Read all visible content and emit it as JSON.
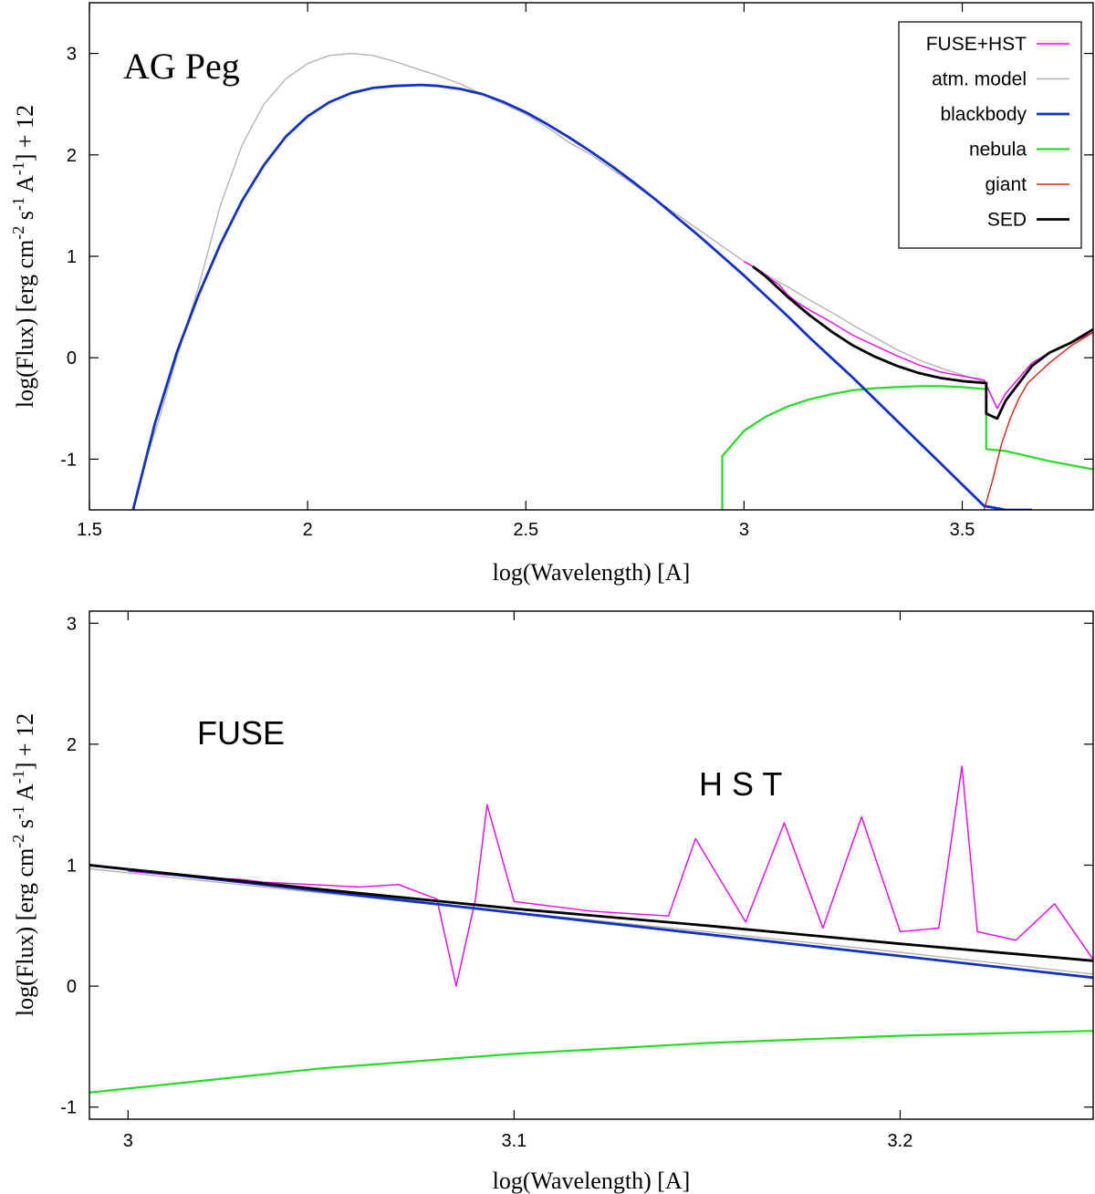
{
  "chart_data": [
    {
      "type": "line",
      "title": "AG Peg",
      "xlabel": "log(Wavelength) [A]",
      "ylabel": "log(Flux) [erg cm^-2 s^-1 A^-1] + 12",
      "xlim": [
        1.5,
        3.8
      ],
      "ylim": [
        -1.5,
        3.5
      ],
      "xticks": [
        1.5,
        2,
        2.5,
        3,
        3.5
      ],
      "xtick_labels": [
        "1.5",
        "2",
        "2.5",
        "3",
        "3.5"
      ],
      "yticks": [
        -1,
        0,
        1,
        2,
        3
      ],
      "ytick_labels": [
        "-1",
        "0",
        "1",
        "2",
        "3"
      ],
      "legend_position": "top-right",
      "colors": {
        "FUSE+HST": "#ee00ee",
        "atm. model": "#b4b4b4",
        "blackbody": "#1030c8",
        "nebula": "#22dd22",
        "giant": "#e02010",
        "SED": "#000000"
      },
      "series": [
        {
          "name": "atm. model",
          "x": [
            1.6,
            1.63,
            1.66,
            1.7,
            1.75,
            1.8,
            1.85,
            1.9,
            1.95,
            2.0,
            2.05,
            2.1,
            2.15,
            2.2,
            2.25,
            2.3,
            2.35,
            2.4,
            2.45,
            2.5,
            2.55,
            2.6,
            2.65,
            2.7,
            2.75,
            2.8,
            2.85,
            2.9,
            2.95,
            3.0,
            3.05,
            3.1,
            3.15,
            3.2,
            3.25,
            3.3,
            3.35,
            3.4,
            3.45,
            3.5,
            3.56
          ],
          "y": [
            -1.5,
            -1.0,
            -0.6,
            0.0,
            0.7,
            1.5,
            2.1,
            2.5,
            2.75,
            2.9,
            2.98,
            3.0,
            2.98,
            2.92,
            2.85,
            2.78,
            2.7,
            2.6,
            2.5,
            2.4,
            2.27,
            2.12,
            2.0,
            1.85,
            1.7,
            1.55,
            1.4,
            1.25,
            1.1,
            0.95,
            0.82,
            0.7,
            0.57,
            0.45,
            0.32,
            0.2,
            0.08,
            -0.02,
            -0.1,
            -0.17,
            -0.25
          ]
        },
        {
          "name": "blackbody",
          "x": [
            1.6,
            1.65,
            1.7,
            1.75,
            1.8,
            1.85,
            1.9,
            1.95,
            2.0,
            2.05,
            2.1,
            2.15,
            2.2,
            2.26,
            2.3,
            2.35,
            2.4,
            2.45,
            2.5,
            2.55,
            2.6,
            2.65,
            2.7,
            2.75,
            2.8,
            2.85,
            2.9,
            2.95,
            3.0,
            3.05,
            3.1,
            3.15,
            3.2,
            3.25,
            3.3,
            3.35,
            3.4,
            3.45,
            3.5,
            3.55,
            3.6,
            3.66
          ],
          "y": [
            -1.5,
            -0.65,
            0.05,
            0.62,
            1.12,
            1.55,
            1.9,
            2.18,
            2.38,
            2.52,
            2.61,
            2.66,
            2.68,
            2.69,
            2.68,
            2.65,
            2.6,
            2.52,
            2.42,
            2.3,
            2.17,
            2.03,
            1.88,
            1.72,
            1.55,
            1.37,
            1.19,
            1.0,
            0.81,
            0.61,
            0.41,
            0.2,
            0.0,
            -0.2,
            -0.41,
            -0.62,
            -0.83,
            -1.04,
            -1.25,
            -1.46,
            -1.5,
            -1.5
          ]
        },
        {
          "name": "nebula",
          "x": [
            2.95,
            2.95,
            3.0,
            3.05,
            3.1,
            3.15,
            3.2,
            3.25,
            3.3,
            3.35,
            3.4,
            3.45,
            3.5,
            3.555,
            3.555,
            3.6,
            3.65,
            3.7,
            3.75,
            3.8
          ],
          "y": [
            -1.5,
            -0.97,
            -0.72,
            -0.58,
            -0.48,
            -0.41,
            -0.36,
            -0.32,
            -0.3,
            -0.29,
            -0.28,
            -0.28,
            -0.29,
            -0.31,
            -0.9,
            -0.92,
            -0.97,
            -1.02,
            -1.06,
            -1.1
          ]
        },
        {
          "name": "giant",
          "x": [
            3.55,
            3.57,
            3.59,
            3.61,
            3.63,
            3.65,
            3.7,
            3.75,
            3.8
          ],
          "y": [
            -1.5,
            -1.2,
            -0.85,
            -0.6,
            -0.4,
            -0.25,
            -0.05,
            0.12,
            0.25
          ]
        },
        {
          "name": "SED",
          "x": [
            3.02,
            3.05,
            3.1,
            3.15,
            3.2,
            3.25,
            3.3,
            3.35,
            3.4,
            3.45,
            3.5,
            3.555,
            3.555,
            3.58,
            3.6,
            3.63,
            3.66,
            3.7,
            3.75,
            3.8
          ],
          "y": [
            0.9,
            0.8,
            0.6,
            0.42,
            0.26,
            0.12,
            0.01,
            -0.08,
            -0.15,
            -0.2,
            -0.23,
            -0.25,
            -0.55,
            -0.6,
            -0.42,
            -0.25,
            -0.08,
            0.05,
            0.15,
            0.28
          ]
        },
        {
          "name": "FUSE+HST",
          "x": [
            3.0,
            3.02,
            3.04,
            3.06,
            3.08,
            3.1,
            3.12,
            3.15,
            3.18,
            3.2,
            3.25,
            3.3,
            3.35,
            3.4,
            3.45,
            3.5,
            3.55,
            3.58,
            3.6,
            3.63,
            3.66,
            3.7,
            3.75,
            3.8
          ],
          "y": [
            0.95,
            0.9,
            0.85,
            0.78,
            0.72,
            0.62,
            0.55,
            0.47,
            0.4,
            0.35,
            0.22,
            0.12,
            0.02,
            -0.07,
            -0.14,
            -0.18,
            -0.22,
            -0.5,
            -0.35,
            -0.2,
            -0.05,
            0.05,
            0.15,
            0.25
          ]
        }
      ],
      "annotations": []
    },
    {
      "type": "line",
      "title": "",
      "xlabel": "log(Wavelength) [A]",
      "ylabel": "log(Flux) [erg cm^-2 s^-1 A^-1] + 12",
      "xlim": [
        2.99,
        3.25
      ],
      "ylim": [
        -1.1,
        3.1
      ],
      "xticks": [
        3.0,
        3.1,
        3.2
      ],
      "xtick_labels": [
        "3",
        "3.1",
        "3.2"
      ],
      "yticks": [
        -1,
        0,
        1,
        2,
        3
      ],
      "ytick_labels": [
        "-1",
        "0",
        "1",
        "2",
        "3"
      ],
      "series": [
        {
          "name": "blackbody",
          "x": [
            2.99,
            3.25
          ],
          "y": [
            1.0,
            0.07
          ]
        },
        {
          "name": "SED",
          "x": [
            2.99,
            3.05,
            3.1,
            3.15,
            3.2,
            3.25
          ],
          "y": [
            1.0,
            0.8,
            0.64,
            0.5,
            0.35,
            0.21
          ]
        },
        {
          "name": "nebula",
          "x": [
            2.99,
            3.05,
            3.1,
            3.15,
            3.2,
            3.25
          ],
          "y": [
            -0.88,
            -0.68,
            -0.56,
            -0.47,
            -0.41,
            -0.37
          ]
        },
        {
          "name": "atm. model",
          "x": [
            2.99,
            3.05,
            3.1,
            3.15,
            3.2,
            3.25
          ],
          "y": [
            0.97,
            0.77,
            0.61,
            0.45,
            0.28,
            0.1
          ]
        },
        {
          "name": "FUSE+HST",
          "x": [
            3.0,
            3.01,
            3.02,
            3.03,
            3.035,
            3.06,
            3.07,
            3.08,
            3.085,
            3.09,
            3.093,
            3.1,
            3.12,
            3.14,
            3.147,
            3.16,
            3.17,
            3.18,
            3.19,
            3.2,
            3.21,
            3.216,
            3.22,
            3.23,
            3.24,
            3.25
          ],
          "y": [
            0.95,
            0.92,
            0.9,
            0.88,
            0.86,
            0.82,
            0.84,
            0.72,
            0.0,
            0.72,
            1.5,
            0.7,
            0.62,
            0.58,
            1.22,
            0.53,
            1.35,
            0.48,
            1.4,
            0.45,
            0.48,
            1.82,
            0.45,
            0.38,
            0.68,
            0.22
          ]
        }
      ],
      "annotations": [
        "FUSE",
        "H S T"
      ]
    }
  ]
}
